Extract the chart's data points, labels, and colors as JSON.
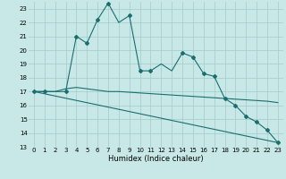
{
  "xlabel": "Humidex (Indice chaleur)",
  "bg_color": "#c8e8e8",
  "grid_color": "#a8cece",
  "line_color": "#1a6e6e",
  "xlim": [
    -0.5,
    23.5
  ],
  "ylim": [
    13,
    23.5
  ],
  "yticks": [
    13,
    14,
    15,
    16,
    17,
    18,
    19,
    20,
    21,
    22,
    23
  ],
  "xticks": [
    0,
    1,
    2,
    3,
    4,
    5,
    6,
    7,
    8,
    9,
    10,
    11,
    12,
    13,
    14,
    15,
    16,
    17,
    18,
    19,
    20,
    21,
    22,
    23
  ],
  "curve1_x": [
    0,
    1,
    2,
    3,
    4,
    5,
    6,
    7,
    8,
    9,
    10,
    11,
    12,
    13,
    14,
    15,
    16,
    17,
    18,
    19,
    20,
    21,
    22,
    23
  ],
  "curve1_y": [
    17.0,
    17.0,
    17.0,
    17.0,
    21.0,
    20.5,
    22.2,
    23.4,
    22.0,
    22.5,
    18.5,
    18.5,
    19.0,
    18.5,
    19.8,
    19.5,
    18.3,
    18.1,
    16.5,
    16.0,
    15.2,
    14.8,
    14.2,
    13.3
  ],
  "markers_x": [
    0,
    1,
    3,
    4,
    5,
    6,
    7,
    9,
    10,
    11,
    14,
    15,
    16,
    17,
    18,
    19,
    20,
    21,
    22,
    23
  ],
  "markers_y": [
    17.0,
    17.0,
    17.0,
    21.0,
    20.5,
    22.2,
    23.4,
    22.5,
    18.5,
    18.5,
    19.8,
    19.5,
    18.3,
    18.1,
    16.5,
    16.0,
    15.2,
    14.8,
    14.2,
    13.3
  ],
  "curve2_x": [
    0,
    1,
    2,
    3,
    4,
    5,
    6,
    7,
    8,
    9,
    10,
    11,
    12,
    13,
    14,
    15,
    16,
    17,
    18,
    19,
    20,
    21,
    22,
    23
  ],
  "curve2_y": [
    17.0,
    17.0,
    17.0,
    17.2,
    17.3,
    17.2,
    17.1,
    17.0,
    17.0,
    16.95,
    16.9,
    16.85,
    16.8,
    16.75,
    16.7,
    16.65,
    16.6,
    16.55,
    16.5,
    16.45,
    16.4,
    16.35,
    16.3,
    16.2
  ],
  "curve3_x": [
    0,
    23
  ],
  "curve3_y": [
    17.0,
    13.3
  ],
  "xlabel_fontsize": 6.0,
  "tick_fontsize": 5.0
}
